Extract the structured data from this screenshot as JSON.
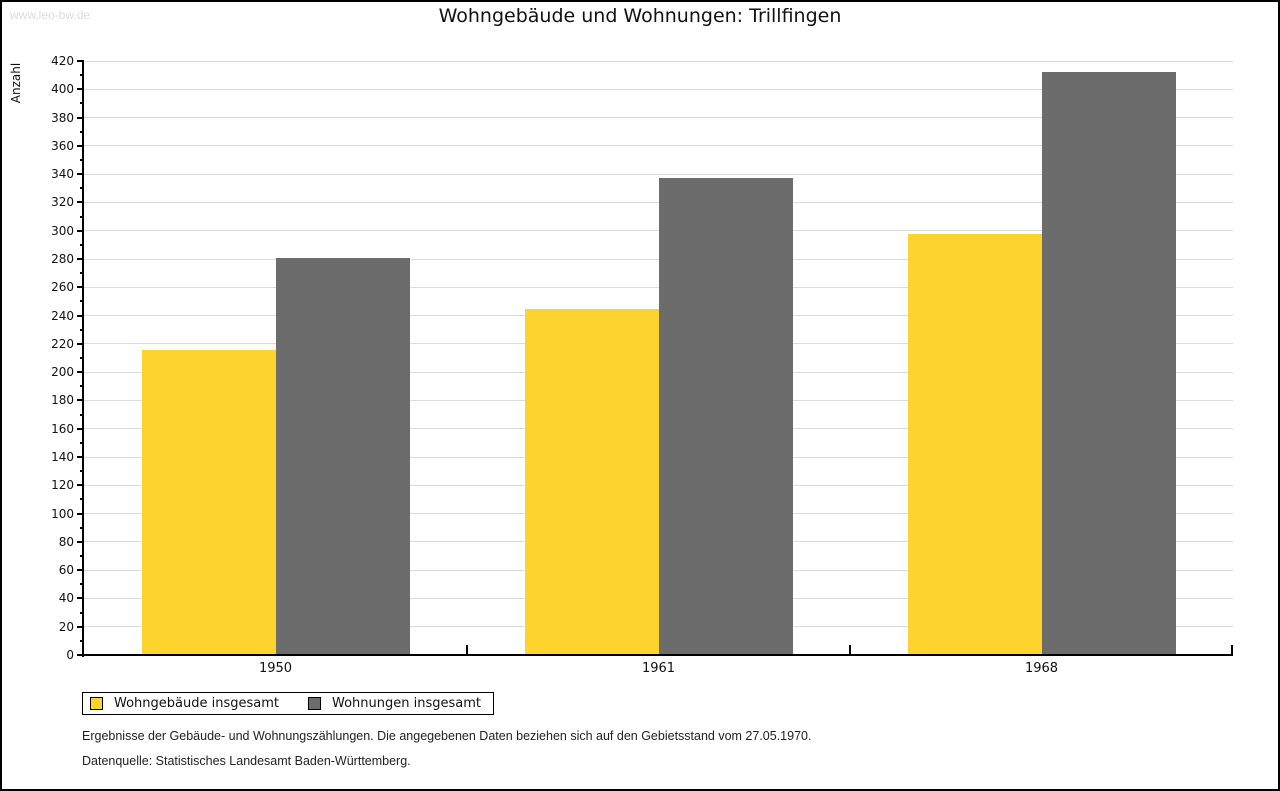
{
  "watermark": "www.leo-bw.de",
  "title": "Wohngebäude und Wohnungen: Trillfingen",
  "chart_data": {
    "type": "bar",
    "title": "Wohngebäude und Wohnungen: Trillfingen",
    "categories": [
      "1950",
      "1961",
      "1968"
    ],
    "series": [
      {
        "name": "Wohngebäude insgesamt",
        "color": "#FCD42D",
        "values": [
          216,
          245,
          298
        ]
      },
      {
        "name": "Wohnungen insgesamt",
        "color": "#6C6C6C",
        "values": [
          281,
          337,
          412
        ]
      }
    ],
    "xlabel": "",
    "ylabel": "Anzahl",
    "ylim": [
      0,
      420
    ],
    "ytick_step": 20,
    "ytick_minor_step": 10,
    "grid": true,
    "gridline_color": "#DCDCDC",
    "legend_position": "bottom-left"
  },
  "footnotes": [
    "Ergebnisse der Gebäude- und Wohnungszählungen. Die angegebenen Daten beziehen sich auf den Gebietsstand vom 27.05.1970.",
    "Datenquelle: Statistisches Landesamt Baden-Württemberg."
  ]
}
